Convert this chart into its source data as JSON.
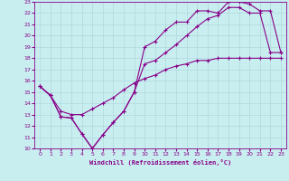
{
  "xlabel": "Windchill (Refroidissement éolien,°C)",
  "xlim": [
    -0.5,
    23.5
  ],
  "ylim": [
    10,
    23
  ],
  "xticks": [
    0,
    1,
    2,
    3,
    4,
    5,
    6,
    7,
    8,
    9,
    10,
    11,
    12,
    13,
    14,
    15,
    16,
    17,
    18,
    19,
    20,
    21,
    22,
    23
  ],
  "yticks": [
    10,
    11,
    12,
    13,
    14,
    15,
    16,
    17,
    18,
    19,
    20,
    21,
    22,
    23
  ],
  "bg_color": "#c8eef0",
  "line_color": "#880088",
  "grid_color": "#b0d8dc",
  "line1_x": [
    0,
    1,
    2,
    3,
    4,
    5,
    6,
    7,
    8,
    9,
    10,
    11,
    12,
    13,
    14,
    15,
    16,
    17,
    18,
    19,
    20,
    21,
    22,
    23
  ],
  "line1_y": [
    15.5,
    14.7,
    12.8,
    12.7,
    11.3,
    10.0,
    11.2,
    12.3,
    13.3,
    15.0,
    19.0,
    19.5,
    20.5,
    21.2,
    21.2,
    22.2,
    22.2,
    22.0,
    23.0,
    23.0,
    22.8,
    22.2,
    22.2,
    18.5
  ],
  "line2_x": [
    0,
    1,
    2,
    3,
    4,
    5,
    6,
    7,
    8,
    9,
    10,
    11,
    12,
    13,
    14,
    15,
    16,
    17,
    18,
    19,
    20,
    21,
    22,
    23
  ],
  "line2_y": [
    15.5,
    14.7,
    12.8,
    12.7,
    11.3,
    10.0,
    11.2,
    12.3,
    13.3,
    15.0,
    17.5,
    17.8,
    18.5,
    19.2,
    20.0,
    20.8,
    21.5,
    21.8,
    22.5,
    22.5,
    22.0,
    22.0,
    18.5,
    18.5
  ],
  "line3_x": [
    0,
    1,
    2,
    3,
    4,
    5,
    6,
    7,
    8,
    9,
    10,
    11,
    12,
    13,
    14,
    15,
    16,
    17,
    18,
    19,
    20,
    21,
    22,
    23
  ],
  "line3_y": [
    15.5,
    14.7,
    13.3,
    13.0,
    13.0,
    13.5,
    14.0,
    14.5,
    15.2,
    15.8,
    16.2,
    16.5,
    17.0,
    17.3,
    17.5,
    17.8,
    17.8,
    18.0,
    18.0,
    18.0,
    18.0,
    18.0,
    18.0,
    18.0
  ]
}
